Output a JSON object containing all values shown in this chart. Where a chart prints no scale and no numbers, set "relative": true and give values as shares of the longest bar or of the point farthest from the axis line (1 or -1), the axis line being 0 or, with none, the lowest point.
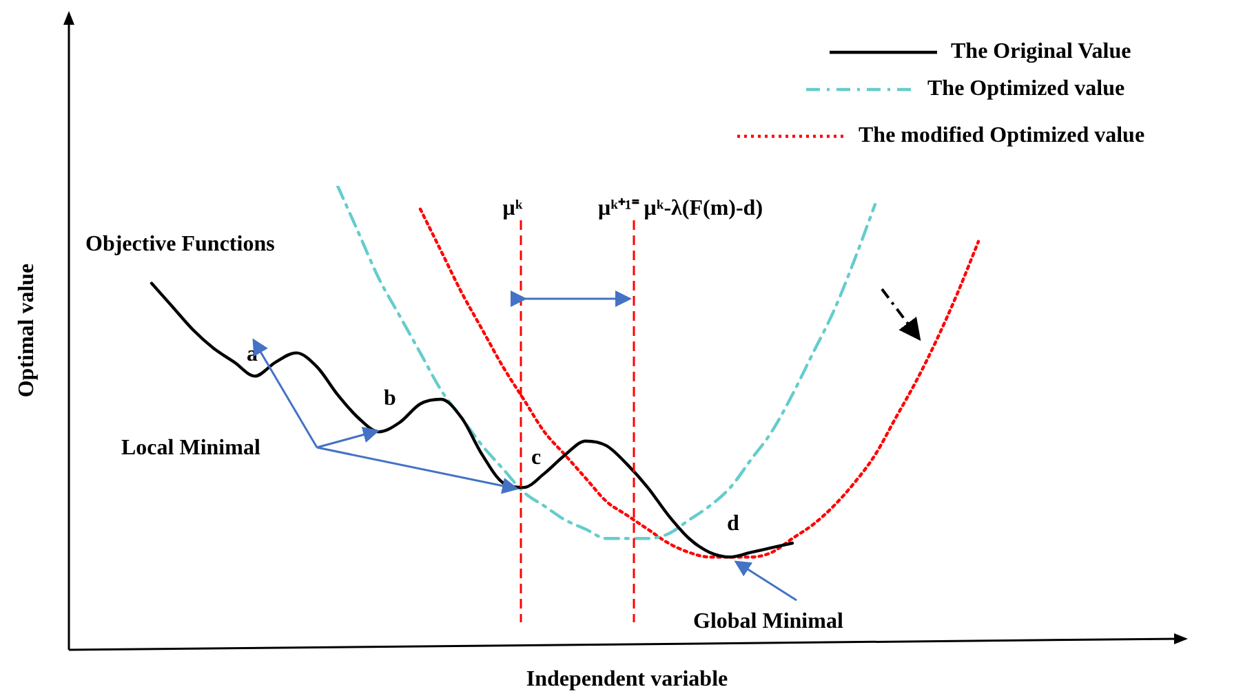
{
  "chart_data": {
    "type": "line",
    "relative": true,
    "xlabel": "Independent variable",
    "ylabel": "Optimal value",
    "categories": [
      null,
      null,
      null,
      null,
      null,
      null,
      null,
      null,
      null,
      null,
      null,
      null,
      null,
      null,
      null,
      null,
      null,
      null,
      null,
      null,
      null,
      null,
      null,
      null,
      null,
      null,
      null,
      null,
      null,
      null,
      null,
      null,
      null,
      null,
      null,
      null,
      null,
      null,
      null,
      null,
      null,
      null,
      null,
      null,
      null,
      null,
      null,
      null,
      null,
      null,
      null,
      null,
      null,
      null,
      null
    ],
    "series": [
      {
        "name": "The Original Value",
        "color": "#000000",
        "line_style": "solid",
        "values": [
          null,
          null,
          null,
          null,
          0.79,
          0.74,
          0.69,
          0.65,
          0.62,
          0.59,
          0.62,
          0.64,
          0.61,
          0.55,
          0.5,
          0.47,
          0.49,
          0.53,
          0.54,
          0.5,
          0.42,
          0.36,
          0.35,
          0.38,
          0.42,
          0.45,
          0.44,
          0.4,
          0.35,
          0.29,
          0.24,
          0.21,
          0.2,
          0.21,
          0.22,
          0.23,
          null,
          null,
          null,
          null,
          null,
          null,
          null,
          null,
          null,
          null,
          null,
          null,
          null,
          null,
          null,
          null,
          null,
          null,
          null
        ]
      },
      {
        "name": "The Optimized value",
        "color": "#66cccc",
        "line_style": "dashed",
        "values": [
          null,
          null,
          null,
          null,
          null,
          null,
          null,
          null,
          null,
          null,
          null,
          null,
          null,
          1.0,
          0.9,
          0.8,
          0.72,
          0.64,
          0.56,
          0.5,
          0.44,
          0.39,
          0.34,
          0.31,
          0.28,
          0.26,
          0.24,
          0.24,
          0.24,
          0.25,
          0.28,
          0.31,
          0.35,
          0.41,
          0.47,
          0.55,
          0.64,
          0.73,
          0.84,
          0.96,
          null,
          null,
          null,
          null,
          null,
          null,
          null,
          null,
          null,
          null,
          null,
          null,
          null,
          null,
          null
        ]
      },
      {
        "name": "The modified Optimized value",
        "color": "#ff0000",
        "line_style": "dotted",
        "values": [
          null,
          null,
          null,
          null,
          null,
          null,
          null,
          null,
          null,
          null,
          null,
          null,
          null,
          null,
          null,
          null,
          null,
          0.95,
          0.86,
          0.77,
          0.69,
          0.61,
          0.54,
          0.47,
          0.42,
          0.37,
          0.32,
          0.29,
          0.26,
          0.23,
          0.21,
          0.2,
          0.2,
          0.2,
          0.21,
          0.24,
          0.27,
          0.31,
          0.36,
          0.42,
          0.5,
          0.58,
          0.67,
          0.77,
          0.88,
          null,
          null,
          null,
          null,
          null,
          null,
          null,
          null,
          null,
          null
        ]
      }
    ],
    "annotations": [
      "Objective Functions",
      "a",
      "b",
      "c",
      "d",
      "Local Minimal",
      "Global Minimal",
      "μᵏ",
      "μᵏ⁺¹⁼ μᵏ-λ(F(m)-d)"
    ],
    "marker": "none",
    "grid": false,
    "legend": "top right"
  }
}
